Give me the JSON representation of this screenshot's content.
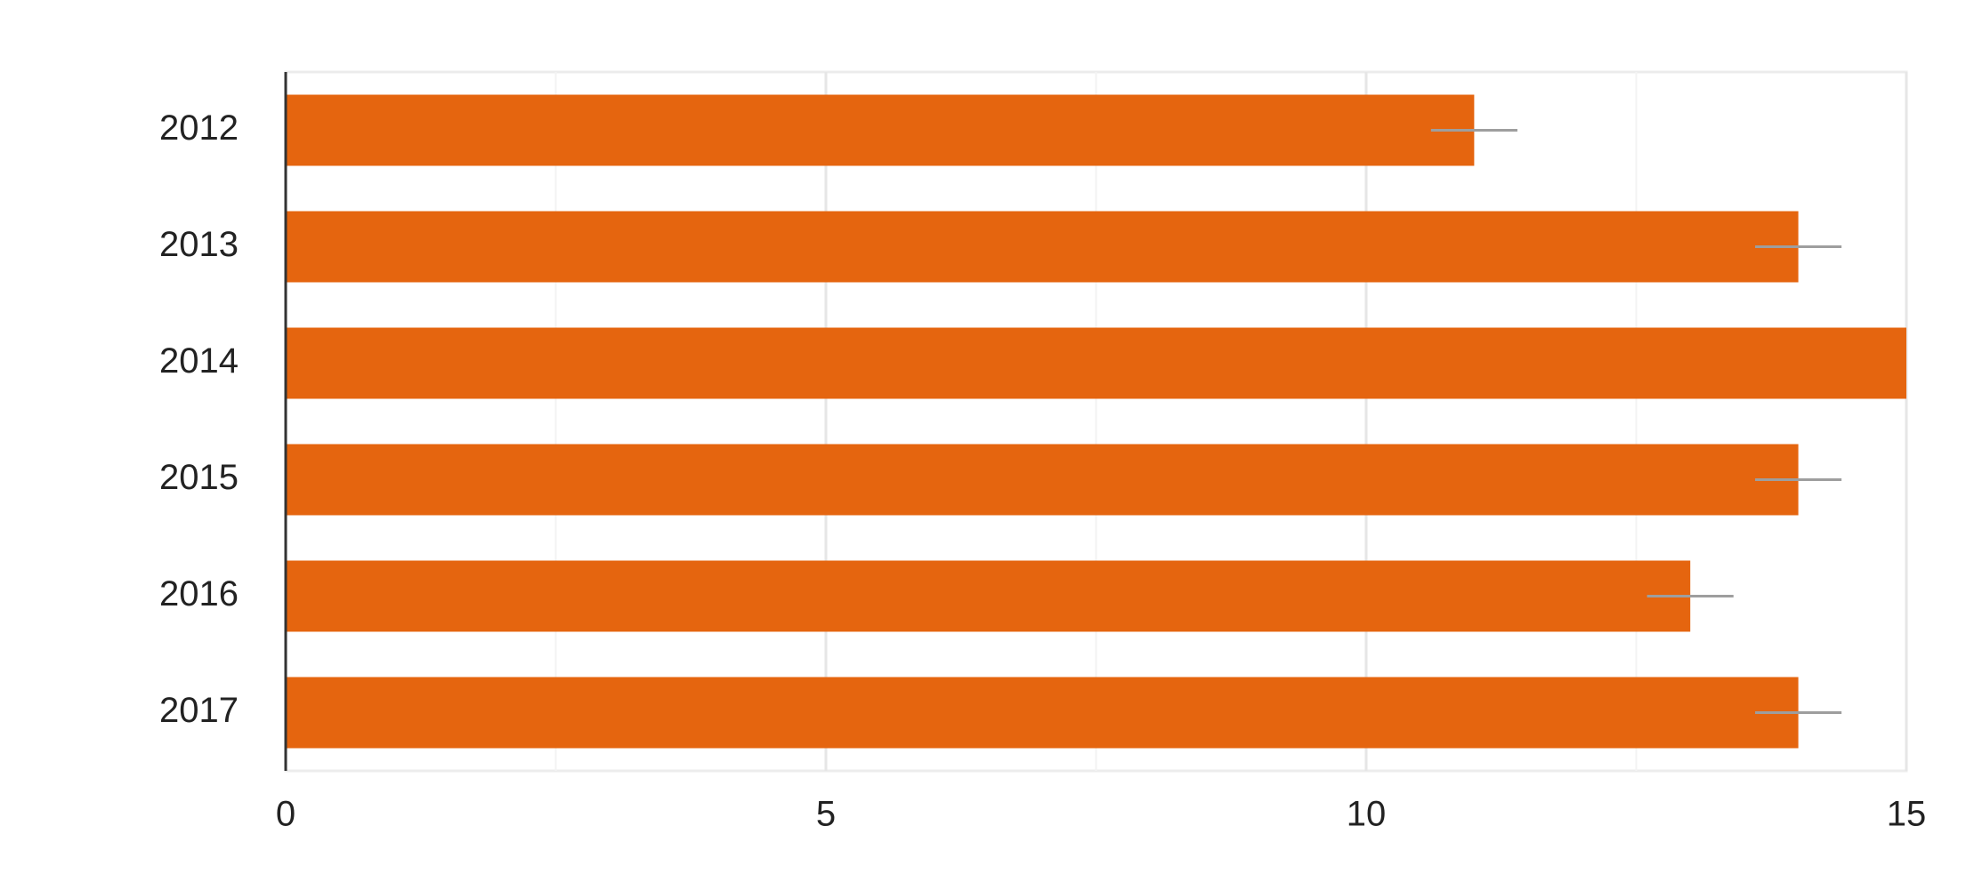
{
  "chart_data": {
    "type": "hbar",
    "categories": [
      "2012",
      "2013",
      "2014",
      "2015",
      "2016",
      "2017"
    ],
    "values": [
      11,
      14,
      15,
      14,
      13,
      14
    ],
    "errors": [
      0.4,
      0.4,
      0,
      0.4,
      0.4,
      0.4
    ],
    "color": "#e5650f",
    "error_color": "#9e9e9e",
    "xlim": [
      0,
      15
    ],
    "xticks": [
      0,
      5,
      10,
      15
    ],
    "minor_xticks": [
      2.5,
      7.5,
      12.5
    ],
    "grid": true
  }
}
